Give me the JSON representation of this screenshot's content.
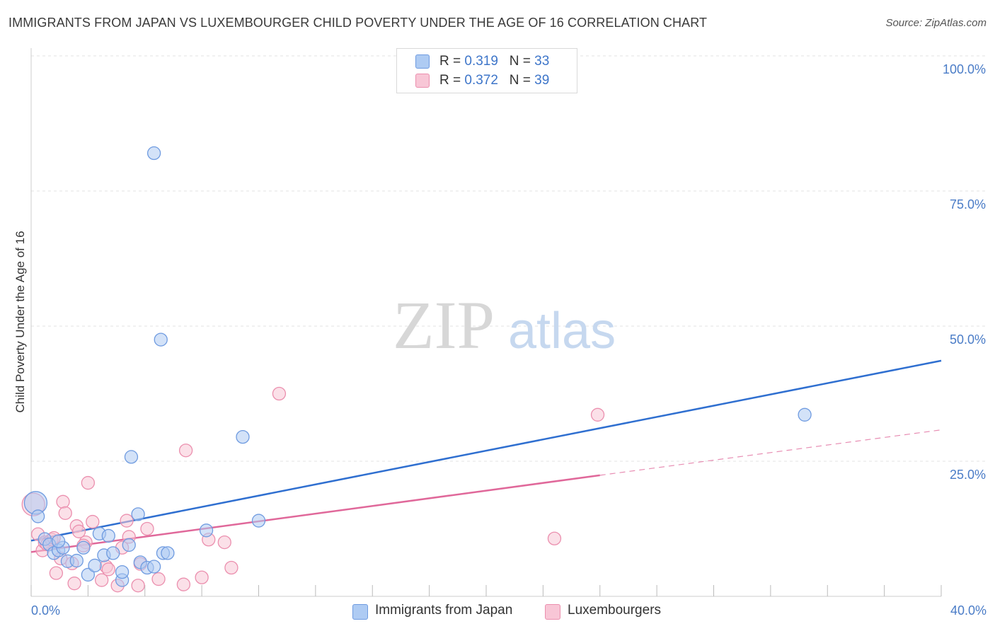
{
  "header": {
    "title": "IMMIGRANTS FROM JAPAN VS LUXEMBOURGER CHILD POVERTY UNDER THE AGE OF 16 CORRELATION CHART",
    "source": "Source: ZipAtlas.com"
  },
  "watermark": {
    "zip": "ZIP",
    "atlas": "atlas"
  },
  "legend": {
    "japan": {
      "r_label": "R =",
      "r_value": "0.319",
      "n_label": "N =",
      "n_value": "33"
    },
    "lux": {
      "r_label": "R =",
      "r_value": "0.372",
      "n_label": "N =",
      "n_value": "39"
    }
  },
  "colors": {
    "japan_fill": "#aecbf3",
    "japan_stroke": "#6f9be0",
    "japan_line": "#2f6fd0",
    "lux_fill": "#f8c6d6",
    "lux_stroke": "#eb8fae",
    "lux_line": "#e0689a",
    "axis_text": "#4a7cc7",
    "grid": "#e3e3e3"
  },
  "chart_data": {
    "type": "scatter",
    "title": "IMMIGRANTS FROM JAPAN VS LUXEMBOURGER CHILD POVERTY UNDER THE AGE OF 16 CORRELATION CHART",
    "xlabel": "",
    "ylabel": "Child Poverty Under the Age of 16",
    "xlim": [
      0,
      40
    ],
    "ylim": [
      0,
      100
    ],
    "x_tick_labels": [
      "0.0%",
      "40.0%"
    ],
    "y_ticks": [
      25,
      50,
      75,
      100
    ],
    "y_tick_labels": [
      "25.0%",
      "50.0%",
      "75.0%",
      "100.0%"
    ],
    "grid": true,
    "legend_position": "top-center",
    "series": [
      {
        "name": "Immigrants from Japan",
        "key": "japan",
        "r": 0.319,
        "n": 33,
        "trend": {
          "x": [
            0,
            40
          ],
          "y": [
            10.3,
            43.6
          ],
          "style": "solid"
        },
        "points": [
          {
            "x": 0.2,
            "y": 17.3,
            "big": true
          },
          {
            "x": 0.3,
            "y": 14.8
          },
          {
            "x": 0.6,
            "y": 10.6
          },
          {
            "x": 0.8,
            "y": 9.6
          },
          {
            "x": 1.0,
            "y": 8.0
          },
          {
            "x": 1.2,
            "y": 8.5
          },
          {
            "x": 1.4,
            "y": 9.0
          },
          {
            "x": 1.6,
            "y": 6.5
          },
          {
            "x": 2.0,
            "y": 6.6
          },
          {
            "x": 2.3,
            "y": 9.0
          },
          {
            "x": 2.5,
            "y": 4.0
          },
          {
            "x": 2.8,
            "y": 5.7
          },
          {
            "x": 3.0,
            "y": 11.6
          },
          {
            "x": 3.2,
            "y": 7.6
          },
          {
            "x": 3.4,
            "y": 11.2
          },
          {
            "x": 3.6,
            "y": 8.0
          },
          {
            "x": 4.0,
            "y": 3.0
          },
          {
            "x": 4.0,
            "y": 4.5
          },
          {
            "x": 4.3,
            "y": 9.5
          },
          {
            "x": 4.4,
            "y": 25.8
          },
          {
            "x": 4.7,
            "y": 15.2
          },
          {
            "x": 4.8,
            "y": 6.3
          },
          {
            "x": 5.1,
            "y": 5.3
          },
          {
            "x": 5.4,
            "y": 82.0
          },
          {
            "x": 5.4,
            "y": 5.5
          },
          {
            "x": 5.7,
            "y": 47.5
          },
          {
            "x": 5.8,
            "y": 8.0
          },
          {
            "x": 6.0,
            "y": 8.0
          },
          {
            "x": 7.7,
            "y": 12.2
          },
          {
            "x": 9.3,
            "y": 29.5
          },
          {
            "x": 10.0,
            "y": 14.0
          },
          {
            "x": 34.0,
            "y": 33.6
          },
          {
            "x": 1.2,
            "y": 10.2
          }
        ]
      },
      {
        "name": "Luxembourgers",
        "key": "lux",
        "r": 0.372,
        "n": 39,
        "trend": {
          "x": [
            0,
            25
          ],
          "y": [
            8.2,
            22.4
          ],
          "style": "solid",
          "dashed_extension": {
            "x": [
              25,
              40
            ],
            "y": [
              22.4,
              30.8
            ]
          }
        },
        "points": [
          {
            "x": 0.1,
            "y": 17.0,
            "big": true
          },
          {
            "x": 0.3,
            "y": 11.5
          },
          {
            "x": 0.5,
            "y": 8.5
          },
          {
            "x": 0.6,
            "y": 10.0
          },
          {
            "x": 0.7,
            "y": 9.6
          },
          {
            "x": 0.9,
            "y": 10.5
          },
          {
            "x": 1.1,
            "y": 4.3
          },
          {
            "x": 1.3,
            "y": 7.0
          },
          {
            "x": 1.4,
            "y": 17.5
          },
          {
            "x": 1.5,
            "y": 15.4
          },
          {
            "x": 1.8,
            "y": 6.1
          },
          {
            "x": 1.9,
            "y": 2.4
          },
          {
            "x": 2.0,
            "y": 13.0
          },
          {
            "x": 2.1,
            "y": 12.0
          },
          {
            "x": 2.4,
            "y": 10.0
          },
          {
            "x": 2.5,
            "y": 21.0
          },
          {
            "x": 2.7,
            "y": 13.8
          },
          {
            "x": 3.1,
            "y": 3.0
          },
          {
            "x": 3.3,
            "y": 5.5
          },
          {
            "x": 3.4,
            "y": 5.0
          },
          {
            "x": 3.8,
            "y": 2.0
          },
          {
            "x": 4.0,
            "y": 9.0
          },
          {
            "x": 4.2,
            "y": 14.0
          },
          {
            "x": 4.3,
            "y": 11.0
          },
          {
            "x": 4.7,
            "y": 2.0
          },
          {
            "x": 4.8,
            "y": 6.0
          },
          {
            "x": 5.1,
            "y": 12.5
          },
          {
            "x": 5.6,
            "y": 3.2
          },
          {
            "x": 6.7,
            "y": 2.2
          },
          {
            "x": 6.8,
            "y": 27.0
          },
          {
            "x": 7.5,
            "y": 3.5
          },
          {
            "x": 7.8,
            "y": 10.5
          },
          {
            "x": 8.5,
            "y": 10.0
          },
          {
            "x": 8.8,
            "y": 5.3
          },
          {
            "x": 10.9,
            "y": 37.5
          },
          {
            "x": 23.0,
            "y": 10.7
          },
          {
            "x": 24.9,
            "y": 33.6
          },
          {
            "x": 2.3,
            "y": 9.4
          },
          {
            "x": 1.0,
            "y": 10.8
          }
        ]
      }
    ]
  }
}
